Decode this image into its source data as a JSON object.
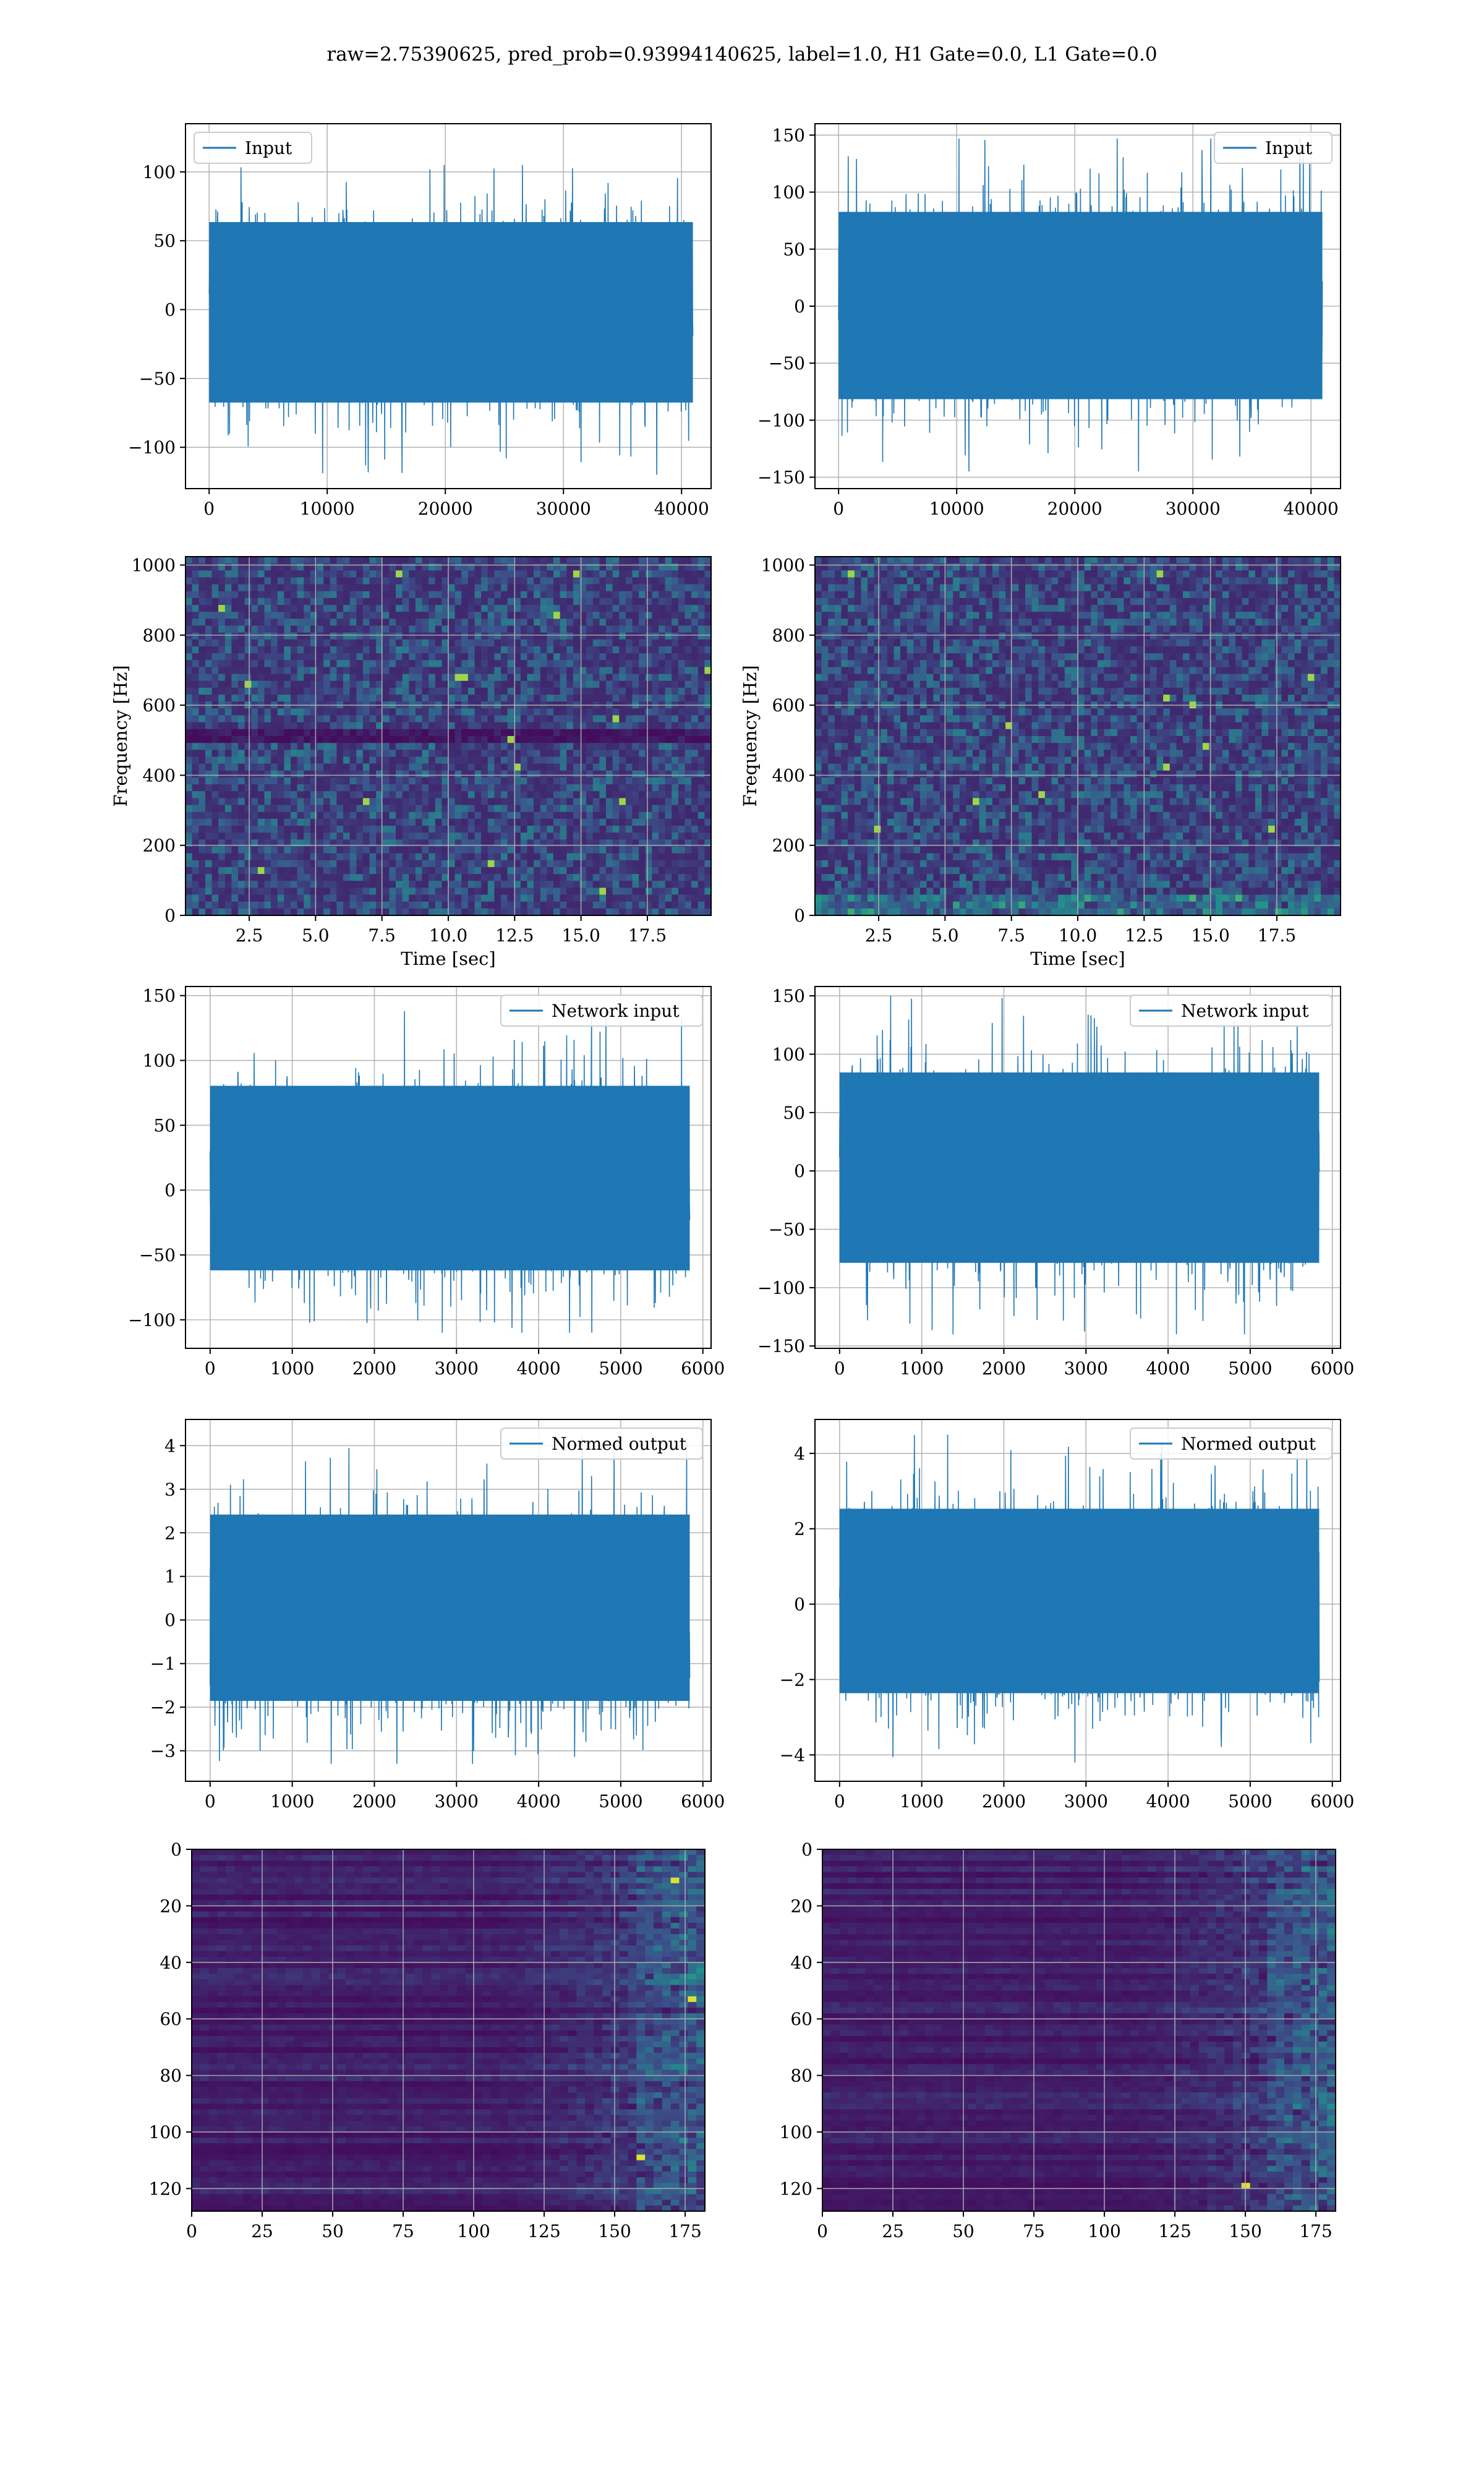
{
  "figure_title": "raw=2.75390625, pred_prob=0.93994140625, label=1.0, H1 Gate=0.0, L1 Gate=0.0",
  "colors": {
    "series": "#1f77b4",
    "grid": "#b0b0b0",
    "heat_low": "#440154",
    "heat_high": "#fde725"
  },
  "chart_data": [
    {
      "id": "input-left",
      "type": "line",
      "legend": "Input",
      "legend_loc": "upper left",
      "xticks": [
        "0",
        "10000",
        "20000",
        "30000",
        "40000"
      ],
      "xlim": [
        -2000,
        42500
      ],
      "yticks": [
        "−100",
        "−50",
        "0",
        "50",
        "100"
      ],
      "ylim": [
        -130,
        135
      ],
      "n_points": 40960,
      "y_range": [
        -120,
        113
      ],
      "grid": true
    },
    {
      "id": "input-right",
      "type": "line",
      "legend": "Input",
      "legend_loc": "upper right",
      "xticks": [
        "0",
        "10000",
        "20000",
        "30000",
        "40000"
      ],
      "xlim": [
        -2000,
        42500
      ],
      "yticks": [
        "−150",
        "−100",
        "−50",
        "0",
        "50",
        "100",
        "150"
      ],
      "ylim": [
        -160,
        160
      ],
      "n_points": 40960,
      "y_range": [
        -145,
        147
      ],
      "grid": true
    },
    {
      "id": "spectrogram-left",
      "type": "heatmap",
      "xlabel": "Time [sec]",
      "ylabel": "Frequency [Hz]",
      "xticks": [
        "2.5",
        "5.0",
        "7.5",
        "10.0",
        "12.5",
        "15.0",
        "17.5"
      ],
      "xlim": [
        0.1,
        19.9
      ],
      "yticks": [
        "0",
        "200",
        "400",
        "600",
        "800",
        "1000"
      ],
      "ylim": [
        0,
        1024
      ],
      "grid": true
    },
    {
      "id": "spectrogram-right",
      "type": "heatmap",
      "xlabel": "Time [sec]",
      "ylabel": "Frequency [Hz]",
      "xticks": [
        "2.5",
        "5.0",
        "7.5",
        "10.0",
        "12.5",
        "15.0",
        "17.5"
      ],
      "xlim": [
        0.1,
        19.9
      ],
      "yticks": [
        "0",
        "200",
        "400",
        "600",
        "800",
        "1000"
      ],
      "ylim": [
        0,
        1024
      ],
      "grid": true
    },
    {
      "id": "network-input-left",
      "type": "line",
      "legend": "Network input",
      "legend_loc": "upper right",
      "xticks": [
        "0",
        "1000",
        "2000",
        "3000",
        "4000",
        "5000",
        "6000"
      ],
      "xlim": [
        -300,
        6100
      ],
      "yticks": [
        "−100",
        "−50",
        "0",
        "50",
        "100",
        "150"
      ],
      "ylim": [
        -122,
        157
      ],
      "n_points": 5840,
      "y_range": [
        -110,
        143
      ],
      "grid": true
    },
    {
      "id": "network-input-right",
      "type": "line",
      "legend": "Network input",
      "legend_loc": "upper right",
      "xticks": [
        "0",
        "1000",
        "2000",
        "3000",
        "4000",
        "5000",
        "6000"
      ],
      "xlim": [
        -300,
        6100
      ],
      "yticks": [
        "−150",
        "−100",
        "−50",
        "0",
        "50",
        "100",
        "150"
      ],
      "ylim": [
        -152,
        158
      ],
      "n_points": 5840,
      "y_range": [
        -140,
        150
      ],
      "grid": true
    },
    {
      "id": "normed-output-left",
      "type": "line",
      "legend": "Normed output",
      "legend_loc": "upper right",
      "xticks": [
        "0",
        "1000",
        "2000",
        "3000",
        "4000",
        "5000",
        "6000"
      ],
      "xlim": [
        -300,
        6100
      ],
      "yticks": [
        "−3",
        "−2",
        "−1",
        "0",
        "1",
        "2",
        "3",
        "4"
      ],
      "ylim": [
        -3.7,
        4.6
      ],
      "n_points": 5840,
      "y_range": [
        -3.3,
        4.3
      ],
      "grid": true
    },
    {
      "id": "normed-output-right",
      "type": "line",
      "legend": "Normed output",
      "legend_loc": "upper right",
      "xticks": [
        "0",
        "1000",
        "2000",
        "3000",
        "4000",
        "5000",
        "6000"
      ],
      "xlim": [
        -300,
        6100
      ],
      "yticks": [
        "−4",
        "−2",
        "0",
        "2",
        "4"
      ],
      "ylim": [
        -4.7,
        4.9
      ],
      "n_points": 5840,
      "y_range": [
        -4.2,
        4.5
      ],
      "grid": true
    },
    {
      "id": "features-left",
      "type": "heatmap",
      "xticks": [
        "0",
        "25",
        "50",
        "75",
        "100",
        "125",
        "150",
        "175"
      ],
      "xlim": [
        0,
        182
      ],
      "yticks": [
        "0",
        "20",
        "40",
        "60",
        "80",
        "100",
        "120"
      ],
      "ylim": [
        0,
        128
      ],
      "grid": true
    },
    {
      "id": "features-right",
      "type": "heatmap",
      "xticks": [
        "0",
        "25",
        "50",
        "75",
        "100",
        "125",
        "150",
        "175"
      ],
      "xlim": [
        0,
        182
      ],
      "yticks": [
        "0",
        "20",
        "40",
        "60",
        "80",
        "100",
        "120"
      ],
      "ylim": [
        0,
        128
      ],
      "grid": true
    }
  ]
}
